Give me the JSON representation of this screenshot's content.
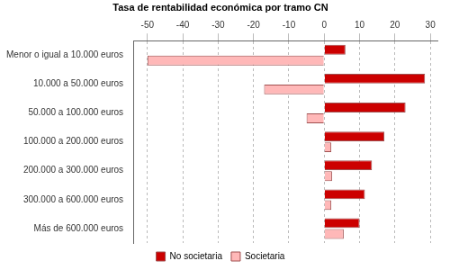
{
  "chart_data": {
    "type": "bar",
    "orientation": "horizontal",
    "title": "Tasa de rentabilidad económica por tramo CN",
    "categories": [
      "Menor o igual a 10.000 euros",
      "10.000 a 50.000 euros",
      "50.000 a 100.000 euros",
      "100.000 a 200.000 euros",
      "200.000 a 300.000 euros",
      "300.000 a 600.000 euros",
      "Más de 600.000 euros"
    ],
    "series": [
      {
        "name": "No societaria",
        "color": "#cc0000",
        "values": [
          6,
          28.5,
          23,
          17,
          13.5,
          11.5,
          10
        ]
      },
      {
        "name": "Societaria",
        "color": "#ffb8b8",
        "values": [
          -50,
          -17,
          -5,
          2,
          2.2,
          2,
          5.5
        ]
      }
    ],
    "xlim": [
      -54,
      32
    ],
    "xticks": [
      -50,
      -40,
      -30,
      -20,
      -10,
      0,
      10,
      20,
      30
    ],
    "grid": true,
    "legend": "bottom"
  }
}
